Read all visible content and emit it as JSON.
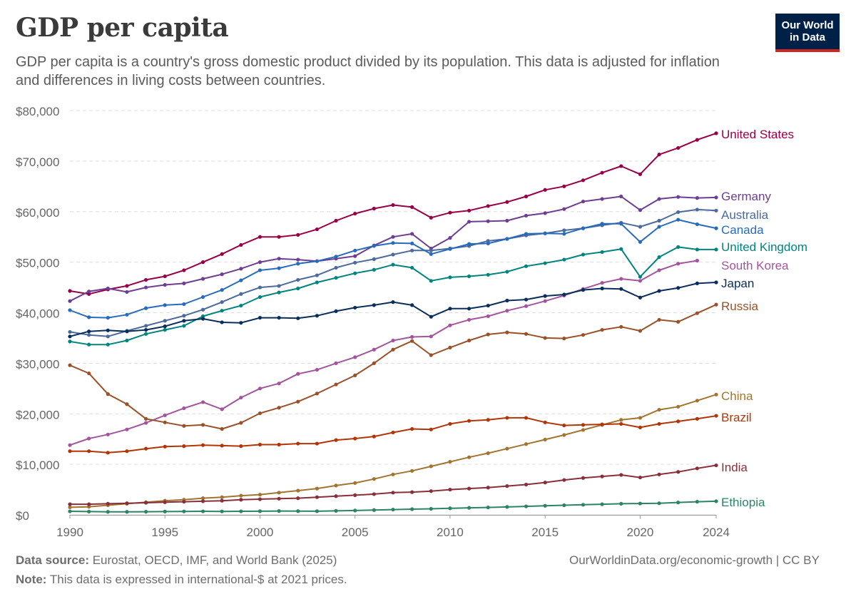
{
  "header": {
    "title": "GDP per capita",
    "subtitle": "GDP per capita is a country's gross domestic product divided by its population. This data is adjusted for inflation and differences in living costs between countries.",
    "logo_line1": "Our World",
    "logo_line2": "in Data"
  },
  "footer": {
    "source_label": "Data source:",
    "source_text": "Eurostat, OECD, IMF, and World Bank (2025)",
    "note_label": "Note:",
    "note_text": "This data is expressed in international-$ at 2021 prices.",
    "credit": "OurWorldinData.org/economic-growth | CC BY"
  },
  "chart_data": {
    "type": "line",
    "title": "GDP per capita",
    "xlabel": "",
    "ylabel": "",
    "xlim": [
      1990,
      2024
    ],
    "ylim": [
      0,
      80000
    ],
    "y_ticks": [
      0,
      10000,
      20000,
      30000,
      40000,
      50000,
      60000,
      70000,
      80000
    ],
    "y_tick_labels": [
      "$0",
      "$10,000",
      "$20,000",
      "$30,000",
      "$40,000",
      "$50,000",
      "$60,000",
      "$70,000",
      "$80,000"
    ],
    "x_ticks": [
      1990,
      1995,
      2000,
      2005,
      2010,
      2015,
      2020,
      2024
    ],
    "x_tick_labels": [
      "1990",
      "1995",
      "2000",
      "2005",
      "2010",
      "2015",
      "2020",
      "2024"
    ],
    "grid": "horizontal dashed",
    "legend": "line-end labels",
    "series": [
      {
        "name": "United States",
        "color": "#970046",
        "start_year": 1990,
        "values": [
          44300,
          43700,
          44600,
          45300,
          46500,
          47200,
          48400,
          50000,
          51600,
          53400,
          55000,
          55000,
          55400,
          56500,
          58200,
          59600,
          60600,
          61300,
          60900,
          58800,
          59800,
          60200,
          61100,
          61900,
          63000,
          64300,
          65000,
          66200,
          67700,
          69000,
          67400,
          71300,
          72600,
          74200,
          75500
        ]
      },
      {
        "name": "Germany",
        "color": "#6d3e91",
        "start_year": 1990,
        "values": [
          42300,
          44200,
          44800,
          44100,
          45000,
          45500,
          45800,
          46700,
          47600,
          48700,
          50000,
          50700,
          50500,
          50200,
          50700,
          51200,
          53300,
          55000,
          55600,
          52700,
          54800,
          58000,
          58100,
          58200,
          59200,
          59700,
          60500,
          62000,
          62500,
          63000,
          60300,
          62500,
          62900,
          62700,
          62800
        ]
      },
      {
        "name": "Australia",
        "color": "#4c6a9c",
        "start_year": 1990,
        "values": [
          36200,
          35600,
          35300,
          36400,
          37400,
          38400,
          39400,
          40600,
          42100,
          43700,
          45000,
          45300,
          46500,
          47400,
          48900,
          49900,
          50600,
          51500,
          52300,
          52300,
          52700,
          53200,
          54200,
          54600,
          55300,
          55700,
          56300,
          56700,
          57300,
          57800,
          57000,
          58200,
          59900,
          60400,
          60200
        ]
      },
      {
        "name": "Canada",
        "color": "#286bbb",
        "start_year": 1990,
        "values": [
          40500,
          39100,
          39000,
          39600,
          40900,
          41500,
          41700,
          43100,
          44500,
          46400,
          48400,
          48800,
          49700,
          50200,
          51100,
          52300,
          53200,
          53800,
          53700,
          51600,
          52600,
          53600,
          53700,
          54600,
          55600,
          55700,
          55600,
          56700,
          57600,
          57600,
          54000,
          57000,
          58400,
          57500,
          56700
        ]
      },
      {
        "name": "United Kingdom",
        "color": "#00847e",
        "start_year": 1990,
        "values": [
          34300,
          33700,
          33700,
          34500,
          35800,
          36600,
          37400,
          39300,
          40400,
          41400,
          43100,
          44000,
          44800,
          46000,
          46900,
          47800,
          48500,
          49500,
          48900,
          46300,
          47000,
          47200,
          47500,
          48100,
          49200,
          49800,
          50500,
          51500,
          52000,
          52600,
          47100,
          51000,
          53000,
          52500,
          52500
        ]
      },
      {
        "name": "South Korea",
        "color": "#a2559c",
        "start_year": 1990,
        "values": [
          13800,
          15100,
          15900,
          16900,
          18200,
          19700,
          21100,
          22300,
          20900,
          23200,
          25000,
          26000,
          27900,
          28700,
          30000,
          31200,
          32700,
          34500,
          35200,
          35300,
          37500,
          38600,
          39300,
          40400,
          41300,
          42300,
          43400,
          44700,
          45900,
          46700,
          46300,
          48400,
          49700,
          50300,
          null
        ]
      },
      {
        "name": "Japan",
        "color": "#0a2e5c",
        "start_year": 1990,
        "values": [
          35300,
          36300,
          36500,
          36300,
          36600,
          37300,
          38400,
          38800,
          38100,
          38000,
          39000,
          39000,
          38900,
          39400,
          40300,
          41000,
          41500,
          42100,
          41500,
          39200,
          40800,
          40800,
          41400,
          42400,
          42600,
          43300,
          43600,
          44500,
          44800,
          44700,
          43000,
          44300,
          44900,
          45800,
          46000
        ]
      },
      {
        "name": "Russia",
        "color": "#9a5129",
        "start_year": 1990,
        "values": [
          29600,
          28000,
          23900,
          21900,
          19000,
          18300,
          17600,
          17800,
          17000,
          18200,
          20100,
          21200,
          22400,
          24000,
          25800,
          27600,
          30000,
          32700,
          34400,
          31600,
          33100,
          34500,
          35700,
          36100,
          35800,
          35000,
          34900,
          35600,
          36600,
          37200,
          36400,
          38600,
          38200,
          39900,
          41600
        ]
      },
      {
        "name": "China",
        "color": "#a2742f",
        "start_year": 1990,
        "values": [
          1500,
          1600,
          1900,
          2200,
          2500,
          2800,
          3000,
          3300,
          3500,
          3800,
          4000,
          4400,
          4800,
          5200,
          5800,
          6300,
          7100,
          8000,
          8700,
          9600,
          10500,
          11400,
          12200,
          13100,
          14000,
          14900,
          15800,
          16800,
          17800,
          18800,
          19200,
          20800,
          21400,
          22600,
          23800
        ]
      },
      {
        "name": "Brazil",
        "color": "#b13507",
        "start_year": 1990,
        "values": [
          12600,
          12600,
          12300,
          12600,
          13100,
          13500,
          13600,
          13800,
          13700,
          13600,
          13900,
          13900,
          14100,
          14100,
          14800,
          15100,
          15500,
          16300,
          17000,
          16900,
          18000,
          18600,
          18800,
          19200,
          19200,
          18300,
          17700,
          17800,
          17900,
          18000,
          17300,
          18000,
          18500,
          19000,
          19600
        ]
      },
      {
        "name": "India",
        "color": "#883039",
        "start_year": 1990,
        "values": [
          2100,
          2100,
          2200,
          2300,
          2400,
          2500,
          2600,
          2700,
          2800,
          3000,
          3100,
          3200,
          3300,
          3500,
          3700,
          3900,
          4100,
          4400,
          4500,
          4700,
          5000,
          5200,
          5400,
          5700,
          6000,
          6400,
          6900,
          7300,
          7600,
          7900,
          7400,
          8000,
          8500,
          9200,
          9800
        ]
      },
      {
        "name": "Ethiopia",
        "color": "#2c8465",
        "start_year": 1990,
        "values": [
          700,
          650,
          600,
          600,
          620,
          650,
          680,
          700,
          680,
          700,
          720,
          760,
          740,
          720,
          790,
          860,
          950,
          1050,
          1130,
          1200,
          1300,
          1390,
          1470,
          1570,
          1680,
          1800,
          1900,
          2000,
          2100,
          2200,
          2250,
          2300,
          2450,
          2600,
          2700
        ]
      }
    ]
  }
}
